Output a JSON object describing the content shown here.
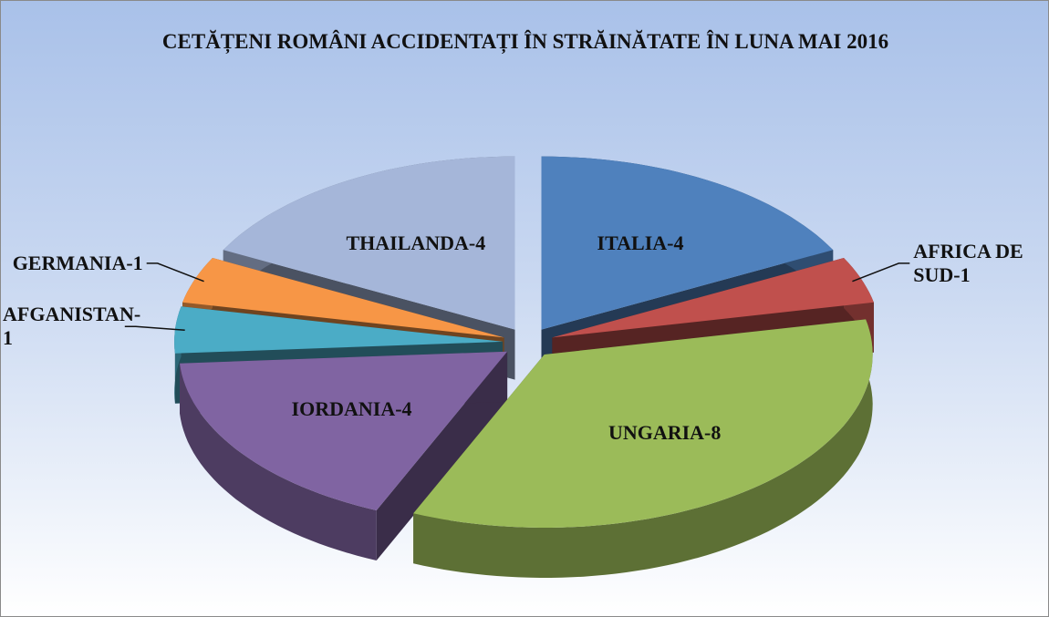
{
  "chart_data": {
    "type": "pie3d",
    "title": "CETĂȚENI ROMÂNI ACCIDENTAȚI ÎN STRĂINĂTATE ÎN LUNA MAI 2016",
    "labels": [
      "ITALIA-4",
      "AFRICA DE SUD-1",
      "UNGARIA-8",
      "IORDANIA-4",
      "AFGANISTAN-1",
      "GERMANIA-1",
      "THAILANDA-4"
    ],
    "values": [
      4,
      1,
      8,
      4,
      1,
      1,
      4
    ],
    "colors": [
      "#4f81bd",
      "#c0504d",
      "#9bbb59",
      "#8064a2",
      "#4bacc6",
      "#f79646",
      "#a5b6d9"
    ]
  }
}
